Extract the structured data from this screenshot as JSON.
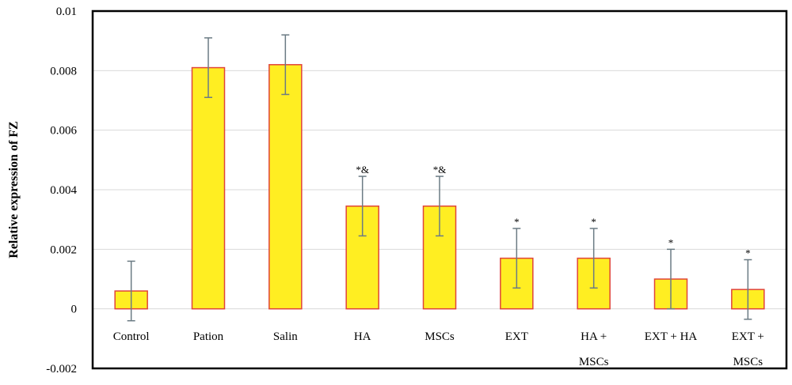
{
  "chart_data": {
    "type": "bar",
    "title": "",
    "xlabel": "",
    "ylabel": "Relative expression of FZ",
    "ylim": [
      -0.002,
      0.01
    ],
    "yticks": [
      {
        "value": -0.002,
        "label": "-0.002"
      },
      {
        "value": 0,
        "label": "0"
      },
      {
        "value": 0.002,
        "label": "0.002"
      },
      {
        "value": 0.004,
        "label": "0.004"
      },
      {
        "value": 0.006,
        "label": "0.006"
      },
      {
        "value": 0.008,
        "label": "0.008"
      },
      {
        "value": 0.01,
        "label": "0.01"
      }
    ],
    "grid": true,
    "legend": "none",
    "categories": [
      [
        "Control"
      ],
      [
        "Pation"
      ],
      [
        "Salin"
      ],
      [
        "HA"
      ],
      [
        "MSCs"
      ],
      [
        "EXT"
      ],
      [
        "HA +",
        "MSCs"
      ],
      [
        "EXT + HA"
      ],
      [
        "EXT +",
        "MSCs"
      ]
    ],
    "values": [
      0.0006,
      0.0081,
      0.0082,
      0.00345,
      0.00345,
      0.0017,
      0.0017,
      0.001,
      0.00065
    ],
    "errors": [
      0.001,
      0.001,
      0.001,
      0.001,
      0.001,
      0.001,
      0.001,
      0.001,
      0.001
    ],
    "annotations": [
      "",
      "",
      "",
      "*&",
      "*&",
      "*",
      "*",
      "*",
      "*"
    ],
    "colors": {
      "bar_fill": "#ffee22",
      "bar_stroke": "#e0443a",
      "error_bar": "#6b7b84",
      "grid": "#d9d9d9",
      "frame": "#000000"
    }
  }
}
